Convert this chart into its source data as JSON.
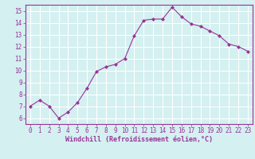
{
  "x": [
    0,
    1,
    2,
    3,
    4,
    5,
    6,
    7,
    8,
    9,
    10,
    11,
    12,
    13,
    14,
    15,
    16,
    17,
    18,
    19,
    20,
    21,
    22,
    23
  ],
  "y": [
    7.0,
    7.5,
    7.0,
    6.0,
    6.5,
    7.3,
    8.5,
    9.9,
    10.3,
    10.5,
    11.0,
    12.9,
    14.2,
    14.3,
    14.3,
    15.3,
    14.5,
    13.9,
    13.7,
    13.3,
    12.9,
    12.2,
    12.0,
    11.6
  ],
  "line_color": "#993399",
  "marker": "D",
  "marker_size": 2.0,
  "bg_color": "#d4f0f0",
  "grid_color": "#ffffff",
  "xlabel": "Windchill (Refroidissement éolien,°C)",
  "xlabel_color": "#993399",
  "tick_color": "#993399",
  "xlim": [
    -0.5,
    23.5
  ],
  "ylim": [
    5.5,
    15.5
  ],
  "yticks": [
    6,
    7,
    8,
    9,
    10,
    11,
    12,
    13,
    14,
    15
  ],
  "xticks": [
    0,
    1,
    2,
    3,
    4,
    5,
    6,
    7,
    8,
    9,
    10,
    11,
    12,
    13,
    14,
    15,
    16,
    17,
    18,
    19,
    20,
    21,
    22,
    23
  ],
  "spine_color": "#993399",
  "tick_fontsize": 5.5,
  "xlabel_fontsize": 6.0
}
